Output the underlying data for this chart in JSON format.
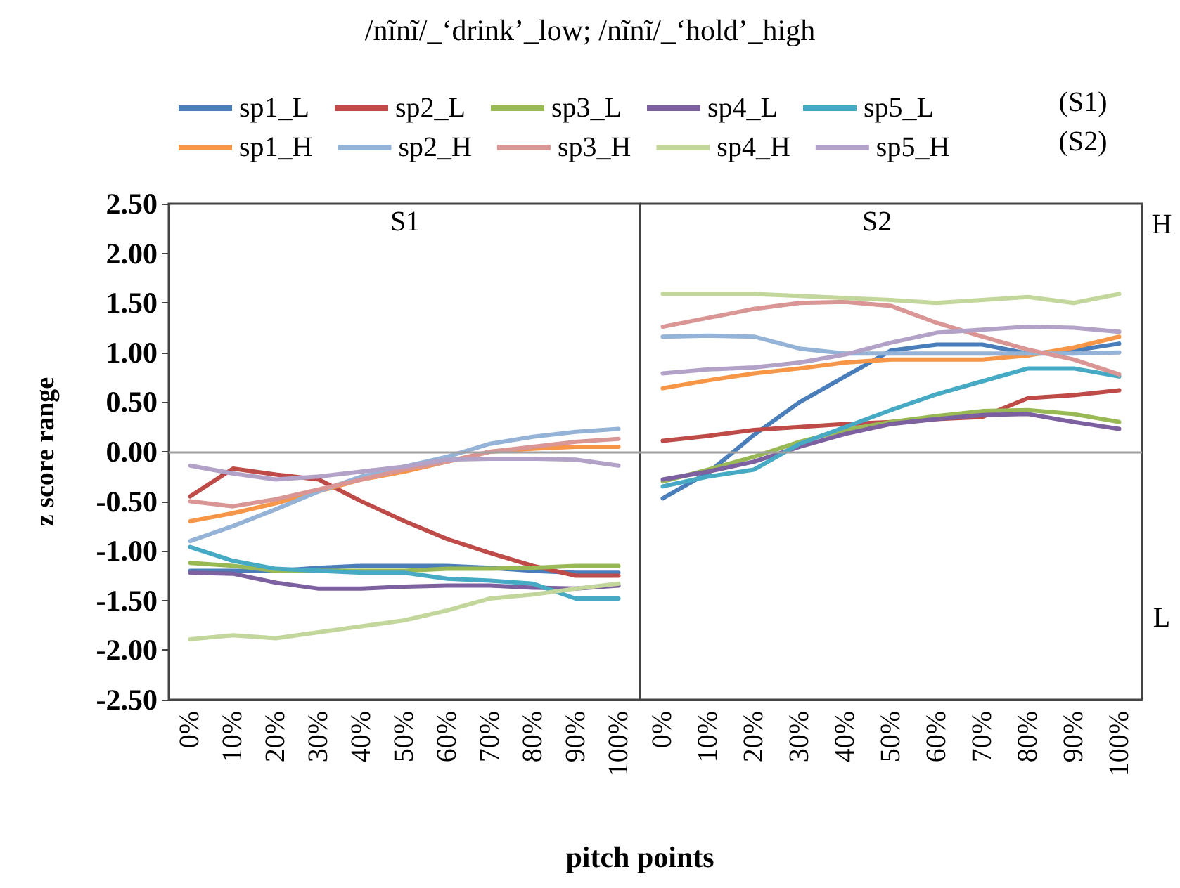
{
  "chart_data": [
    {
      "type": "line",
      "title": "/nĩnĩ/_‘drink’_low; /nĩnĩ/_‘hold’_high",
      "xlabel": "pitch points",
      "ylabel": "z score range",
      "annotations": [
        "S1",
        "(S1)",
        "(S2)",
        "H",
        "L"
      ],
      "categories": [
        "0%",
        "10%",
        "20%",
        "30%",
        "40%",
        "50%",
        "60%",
        "70%",
        "80%",
        "90%",
        "100%"
      ],
      "ylim": [
        -2.5,
        2.5
      ],
      "yticks": [
        {
          "value": -2.5,
          "label": "-2.50"
        },
        {
          "value": -2,
          "label": "-2.00"
        },
        {
          "value": -1.5,
          "label": "-1.50"
        },
        {
          "value": -1,
          "label": "-1.00"
        },
        {
          "value": -0.5,
          "label": "-0.50"
        },
        {
          "value": 0,
          "label": "0.00"
        },
        {
          "value": 0.5,
          "label": "0.50"
        },
        {
          "value": 1,
          "label": "1.00"
        },
        {
          "value": 1.5,
          "label": "1.50"
        },
        {
          "value": 2,
          "label": "2.00"
        },
        {
          "value": 2.5,
          "label": "2.50"
        }
      ],
      "ref_lines": [
        {
          "axis": "y",
          "value": 0,
          "color": "#a0a0a0"
        }
      ],
      "grid": false,
      "legend": "top",
      "marker": "none",
      "line_style": "solid",
      "series": [
        {
          "name": "sp1_L",
          "color": "#4a7ebb",
          "values": [
            -1.2,
            -1.2,
            -1.2,
            -1.17,
            -1.15,
            -1.15,
            -1.15,
            -1.17,
            -1.2,
            -1.22,
            -1.22
          ]
        },
        {
          "name": "sp2_L",
          "color": "#be4b48",
          "values": [
            -0.45,
            -0.17,
            -0.23,
            -0.28,
            -0.5,
            -0.7,
            -0.88,
            -1.02,
            -1.15,
            -1.25,
            -1.25
          ]
        },
        {
          "name": "sp3_L",
          "color": "#98b954",
          "values": [
            -1.12,
            -1.15,
            -1.2,
            -1.2,
            -1.2,
            -1.2,
            -1.18,
            -1.18,
            -1.17,
            -1.15,
            -1.15
          ]
        },
        {
          "name": "sp4_L",
          "color": "#7d60a0",
          "values": [
            -1.22,
            -1.23,
            -1.32,
            -1.38,
            -1.38,
            -1.36,
            -1.35,
            -1.35,
            -1.37,
            -1.38,
            -1.35
          ]
        },
        {
          "name": "sp5_L",
          "color": "#46aac5",
          "values": [
            -0.96,
            -1.1,
            -1.18,
            -1.2,
            -1.22,
            -1.22,
            -1.28,
            -1.3,
            -1.33,
            -1.48,
            -1.48
          ]
        },
        {
          "name": "sp1_H",
          "color": "#f79646",
          "values": [
            -0.7,
            -0.62,
            -0.52,
            -0.4,
            -0.28,
            -0.2,
            -0.1,
            0,
            0.03,
            0.05,
            0.05
          ]
        },
        {
          "name": "sp2_H",
          "color": "#95b3d7",
          "values": [
            -0.9,
            -0.75,
            -0.58,
            -0.4,
            -0.25,
            -0.15,
            -0.05,
            0.08,
            0.15,
            0.2,
            0.23
          ]
        },
        {
          "name": "sp3_H",
          "color": "#d99694",
          "values": [
            -0.5,
            -0.55,
            -0.48,
            -0.38,
            -0.28,
            -0.18,
            -0.1,
            0,
            0.05,
            0.1,
            0.13
          ]
        },
        {
          "name": "sp4_H",
          "color": "#c3d69b",
          "values": [
            -1.89,
            -1.85,
            -1.88,
            -1.82,
            -1.76,
            -1.7,
            -1.6,
            -1.48,
            -1.44,
            -1.38,
            -1.33
          ]
        },
        {
          "name": "sp5_H",
          "color": "#b3a2c7",
          "values": [
            -0.14,
            -0.22,
            -0.28,
            -0.25,
            -0.2,
            -0.15,
            -0.08,
            -0.07,
            -0.07,
            -0.08,
            -0.14
          ]
        }
      ]
    },
    {
      "type": "line",
      "title": "S2",
      "tick_labels": "x",
      "categories": [
        "0%",
        "10%",
        "20%",
        "30%",
        "40%",
        "50%",
        "60%",
        "70%",
        "80%",
        "90%",
        "100%"
      ],
      "ylim": [
        -2.5,
        2.5
      ],
      "ref_lines": [
        {
          "axis": "y",
          "value": 0,
          "color": "#a0a0a0"
        }
      ],
      "grid": false,
      "legend": false,
      "marker": "none",
      "line_style": "solid",
      "series": [
        {
          "color": "#4a7ebb",
          "values": [
            -0.47,
            -0.21,
            0.17,
            0.5,
            0.76,
            1.02,
            1.08,
            1.08,
            0.99,
            1.02,
            1.09
          ]
        },
        {
          "color": "#be4b48",
          "values": [
            0.11,
            0.16,
            0.22,
            0.25,
            0.28,
            0.3,
            0.33,
            0.35,
            0.54,
            0.57,
            0.62
          ]
        },
        {
          "color": "#98b954",
          "values": [
            -0.3,
            -0.18,
            -0.05,
            0.1,
            0.22,
            0.3,
            0.36,
            0.41,
            0.42,
            0.38,
            0.3
          ]
        },
        {
          "color": "#7d60a0",
          "values": [
            -0.28,
            -0.2,
            -0.1,
            0.05,
            0.18,
            0.28,
            0.33,
            0.37,
            0.38,
            0.3,
            0.23
          ]
        },
        {
          "color": "#46aac5",
          "values": [
            -0.35,
            -0.25,
            -0.18,
            0.08,
            0.25,
            0.42,
            0.58,
            0.71,
            0.84,
            0.84,
            0.76
          ]
        },
        {
          "color": "#f79646",
          "values": [
            0.64,
            0.72,
            0.79,
            0.84,
            0.9,
            0.93,
            0.93,
            0.93,
            0.97,
            1.05,
            1.16
          ]
        },
        {
          "color": "#95b3d7",
          "values": [
            1.16,
            1.17,
            1.16,
            1.04,
            0.99,
            0.99,
            0.99,
            0.99,
            0.99,
            0.99,
            1
          ]
        },
        {
          "color": "#d99694",
          "values": [
            1.26,
            1.35,
            1.44,
            1.5,
            1.51,
            1.47,
            1.3,
            1.16,
            1.03,
            0.93,
            0.78
          ]
        },
        {
          "color": "#c3d69b",
          "values": [
            1.59,
            1.59,
            1.59,
            1.57,
            1.55,
            1.53,
            1.5,
            1.53,
            1.56,
            1.5,
            1.59
          ]
        },
        {
          "color": "#b3a2c7",
          "values": [
            0.79,
            0.83,
            0.85,
            0.9,
            0.98,
            1.1,
            1.2,
            1.23,
            1.26,
            1.25,
            1.21
          ]
        }
      ]
    }
  ]
}
